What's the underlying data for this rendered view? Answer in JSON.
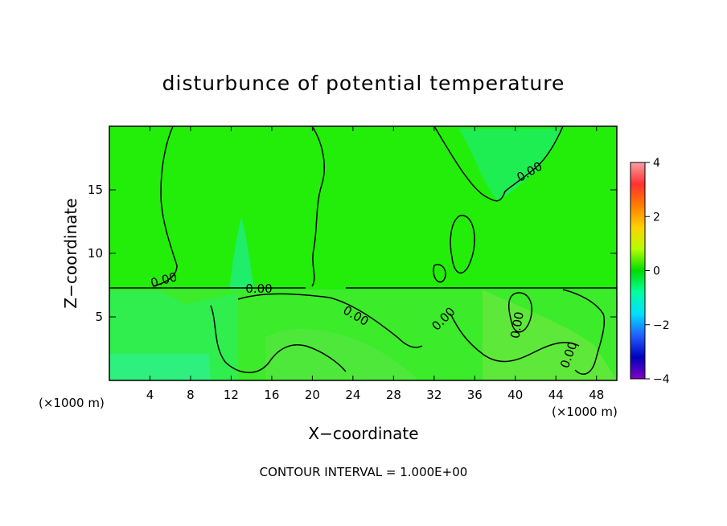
{
  "chart_data": {
    "type": "heatmap",
    "title": "disturbunce of potential temperature",
    "xlabel": "X−coordinate",
    "ylabel": "Z−coordinate",
    "x_unit_label": "(×1000 m)",
    "x_unit_label_right": "(×1000 m)",
    "xlim": [
      0,
      50
    ],
    "ylim": [
      0,
      20
    ],
    "x_ticks": [
      4,
      8,
      12,
      16,
      20,
      24,
      28,
      32,
      36,
      40,
      44,
      48
    ],
    "y_ticks": [
      5,
      10,
      15
    ],
    "contour_interval_text": "CONTOUR INTERVAL = 1.000E+00",
    "contour_level_label": "0.00",
    "colorbar": {
      "min": -4,
      "max": 4,
      "ticks": [
        4,
        2,
        0,
        -2,
        -4
      ],
      "colors": [
        "#f7a0a0",
        "#ff3030",
        "#ff7f00",
        "#ffd200",
        "#b4ff00",
        "#00dd00",
        "#00ffa0",
        "#00e0ff",
        "#2060ff",
        "#0000c0",
        "#8000c0"
      ]
    },
    "field_colors": {
      "background": "#22ee0a",
      "near_zero_negative": "#12ee5a",
      "slightly_negative": "#30f090",
      "slightly_positive": "#5ee83a"
    },
    "grid": false
  }
}
